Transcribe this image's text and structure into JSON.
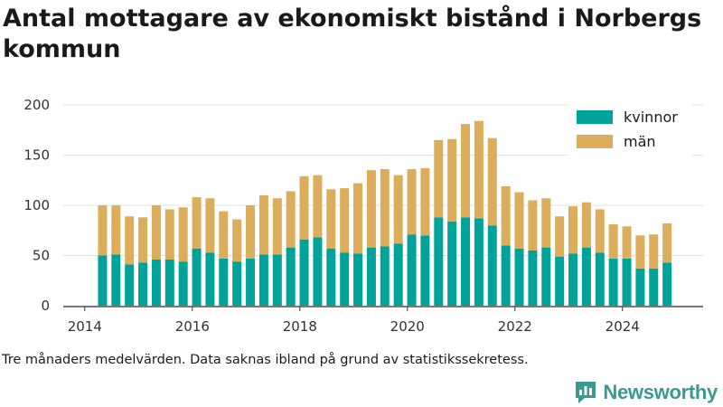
{
  "title": "Antal mottagare av ekonomiskt bistånd i Norbergs kommun",
  "caption": "Tre månaders medelvärden. Data saknas ibland på grund av statistikssekretess.",
  "brand": {
    "name": "Newsworthy",
    "icon": "newsworthy-logo-icon",
    "color": "#3a9a8e"
  },
  "chart_data": {
    "type": "bar",
    "stacked": true,
    "x_ticks": [
      "2014",
      "2016",
      "2018",
      "2020",
      "2022",
      "2024"
    ],
    "xlim": [
      2013.6,
      2025.5
    ],
    "y_ticks": [
      "0",
      "50",
      "100",
      "150",
      "200"
    ],
    "ylim": [
      0,
      200
    ],
    "grid": "horizontal",
    "legend_position": "top-right",
    "x": [
      2014.33,
      2014.58,
      2014.83,
      2015.08,
      2015.33,
      2015.58,
      2015.83,
      2016.08,
      2016.33,
      2016.58,
      2016.83,
      2017.08,
      2017.33,
      2017.58,
      2017.83,
      2018.08,
      2018.33,
      2018.58,
      2018.83,
      2019.08,
      2019.33,
      2019.58,
      2019.83,
      2020.08,
      2020.33,
      2020.58,
      2020.83,
      2021.08,
      2021.33,
      2021.58,
      2021.83,
      2022.08,
      2022.33,
      2022.58,
      2022.83,
      2023.08,
      2023.33,
      2023.58,
      2023.83,
      2024.08,
      2024.33,
      2024.58,
      2024.83
    ],
    "series": [
      {
        "name": "kvinnor",
        "color": "#00a39a",
        "values": [
          50,
          51,
          41,
          43,
          46,
          46,
          44,
          57,
          53,
          47,
          44,
          47,
          51,
          51,
          58,
          66,
          68,
          57,
          53,
          52,
          58,
          59,
          62,
          71,
          70,
          88,
          84,
          88,
          87,
          80,
          60,
          57,
          55,
          58,
          49,
          52,
          58,
          53,
          47,
          47,
          37,
          37,
          43
        ]
      },
      {
        "name": "män",
        "color": "#dcad5a",
        "values": [
          50,
          49,
          48,
          45,
          54,
          50,
          54,
          51,
          54,
          47,
          42,
          53,
          59,
          56,
          56,
          63,
          62,
          59,
          64,
          70,
          77,
          77,
          68,
          65,
          67,
          77,
          82,
          93,
          97,
          87,
          59,
          56,
          50,
          49,
          40,
          47,
          45,
          43,
          34,
          32,
          33,
          34,
          39
        ]
      }
    ]
  }
}
